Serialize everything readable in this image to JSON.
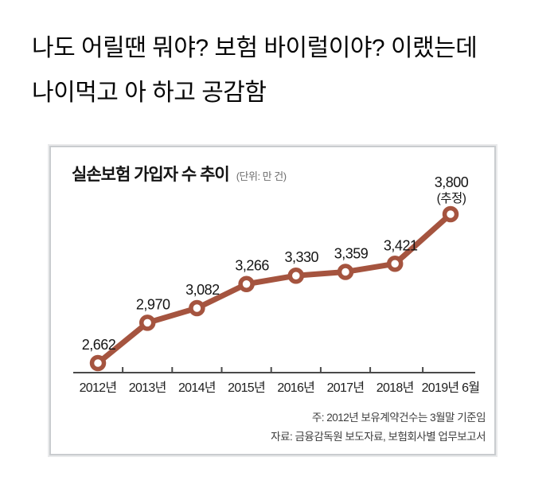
{
  "meme_caption": {
    "line1": "나도 어릴땐 뭐야? 보험 바이럴이야? 이랬는데",
    "line2": "나이먹고 아 하고 공감함"
  },
  "chart": {
    "title": "실손보험 가입자 수 추이",
    "unit_label": "(단위: 만 건)",
    "notes": [
      "주: 2012년 보유계약건수는 3월말 기준임",
      "자료: 금융감독원 보도자료, 보험회사별 업무보고서"
    ]
  },
  "chart_data": {
    "type": "line",
    "title": "실손보험 가입자 수 추이",
    "unit": "만 건",
    "categories": [
      "2012년",
      "2013년",
      "2014년",
      "2015년",
      "2016년",
      "2017년",
      "2018년",
      "2019년 6월"
    ],
    "values": [
      2662,
      2970,
      3082,
      3266,
      3330,
      3359,
      3421,
      3800
    ],
    "value_labels": [
      "2,662",
      "2,970",
      "3,082",
      "3,266",
      "3,330",
      "3,359",
      "3,421",
      "3,800"
    ],
    "last_value_annotation": "(추정)",
    "ylim": [
      2500,
      3900
    ],
    "grid": false,
    "legend": false,
    "line_color": "#a5543f",
    "marker": "open-circle",
    "axis_color": "#4a4a4a",
    "notes": [
      "주: 2012년 보유계약건수는 3월말 기준임",
      "자료: 금융감독원 보도자료, 보험회사별 업무보고서"
    ]
  }
}
